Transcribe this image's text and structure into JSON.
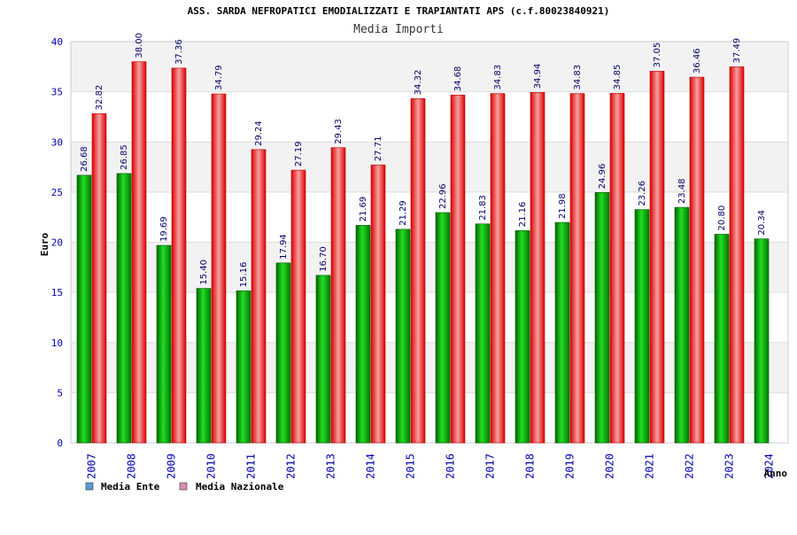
{
  "chart_data": {
    "type": "bar",
    "title": "ASS. SARDA NEFROPATICI EMODIALIZZATI E TRAPIANTATI APS (c.f.80023840921)",
    "subtitle": "Media Importi",
    "xlabel": "Anno",
    "ylabel": "Euro",
    "ylim": [
      0,
      40
    ],
    "yticks": [
      "0",
      "5",
      "10",
      "15",
      "20",
      "25",
      "30",
      "35",
      "40"
    ],
    "categories": [
      "2007",
      "2008",
      "2009",
      "2010",
      "2011",
      "2012",
      "2013",
      "2014",
      "2015",
      "2016",
      "2017",
      "2018",
      "2019",
      "2020",
      "2021",
      "2022",
      "2023",
      "2024"
    ],
    "series": [
      {
        "name": "Media Ente",
        "color": "#00aa00",
        "values": [
          26.68,
          26.85,
          19.69,
          15.4,
          15.16,
          17.94,
          16.7,
          21.69,
          21.29,
          22.96,
          21.83,
          21.16,
          21.98,
          24.96,
          23.26,
          23.48,
          20.8,
          20.34
        ],
        "labels": [
          "26.68",
          "26.85",
          "19.69",
          "15.40",
          "15.16",
          "17.94",
          "16.70",
          "21.69",
          "21.29",
          "22.96",
          "21.83",
          "21.16",
          "21.98",
          "24.96",
          "23.26",
          "23.48",
          "20.80",
          "20.34"
        ]
      },
      {
        "name": "Media Nazionale",
        "color": "#ee1111",
        "values": [
          32.82,
          38.0,
          37.36,
          34.79,
          29.24,
          27.19,
          29.43,
          27.71,
          34.32,
          34.68,
          34.83,
          34.94,
          34.83,
          34.85,
          37.05,
          36.46,
          37.49,
          null
        ],
        "labels": [
          "32.82",
          "38.00",
          "37.36",
          "34.79",
          "29.24",
          "27.19",
          "29.43",
          "27.71",
          "34.32",
          "34.68",
          "34.83",
          "34.94",
          "34.83",
          "34.85",
          "37.05",
          "36.46",
          "37.49",
          ""
        ]
      }
    ],
    "legend": {
      "placement": "bottom-left",
      "items": [
        {
          "label": "Media Ente",
          "color": "#5b9bd5"
        },
        {
          "label": "Media Nazionale",
          "color": "#d98cb3"
        }
      ]
    },
    "grid": true,
    "band_colors": [
      "#f2f2f2",
      "#ffffff"
    ]
  }
}
